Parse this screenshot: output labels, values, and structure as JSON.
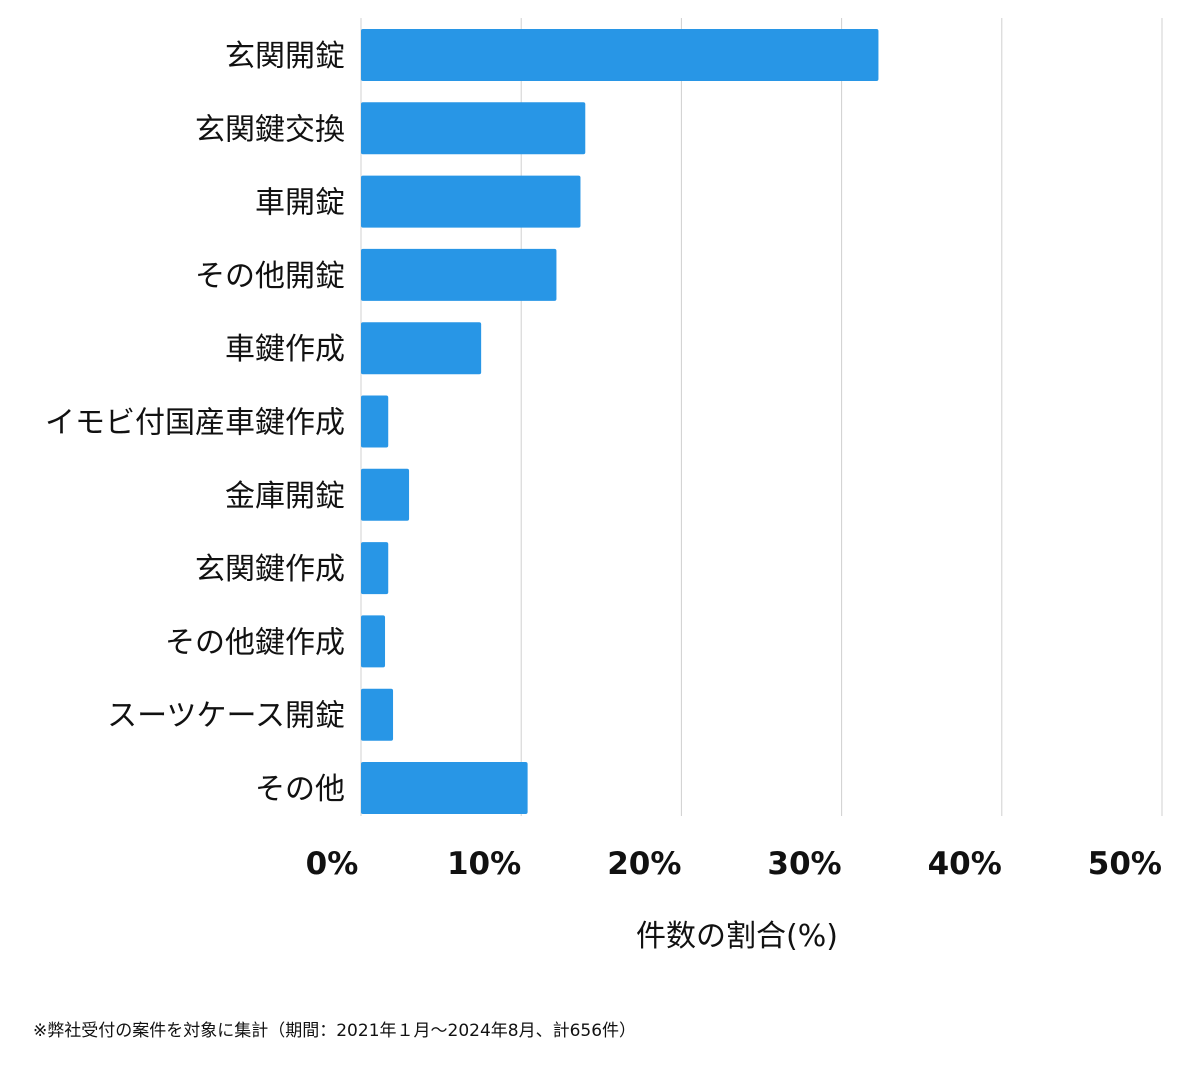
{
  "chart_data": {
    "type": "bar",
    "orientation": "horizontal",
    "categories": [
      "玄関開錠",
      "玄関鍵交換",
      "車開錠",
      "その他開錠",
      "車鍵作成",
      "イモビ付国産車鍵作成",
      "金庫開錠",
      "玄関鍵作成",
      "その他鍵作成",
      "スーツケース開錠",
      "その他"
    ],
    "values": [
      32.3,
      14.0,
      13.7,
      12.2,
      7.5,
      1.7,
      3.0,
      1.7,
      1.5,
      2.0,
      10.4
    ],
    "xlabel": "件数の割合(%)",
    "ylabel": "",
    "xlim": [
      0,
      50
    ],
    "xticks": [
      0,
      10,
      20,
      30,
      40,
      50
    ],
    "xtick_labels": [
      "0%",
      "10%",
      "20%",
      "30%",
      "40%",
      "50%"
    ],
    "bar_color": "#2896e6",
    "grid": true
  },
  "footnote": "※弊社受付の案件を対象に集計（期間：2021年１月〜2024年8月、計656件）"
}
